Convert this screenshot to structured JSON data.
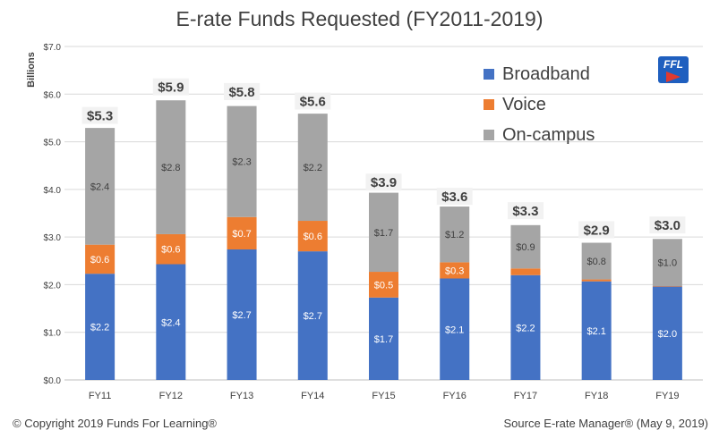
{
  "chart_data": {
    "type": "bar",
    "stacked": true,
    "title": "E-rate Funds Requested (FY2011-2019)",
    "ylabel": "Billions",
    "ylim": [
      0,
      7
    ],
    "yticks": [
      "$0.0",
      "$1.0",
      "$2.0",
      "$3.0",
      "$4.0",
      "$5.0",
      "$6.0",
      "$7.0"
    ],
    "grid": true,
    "legend_position": "top-right",
    "categories": [
      "FY11",
      "FY12",
      "FY13",
      "FY14",
      "FY15",
      "FY16",
      "FY17",
      "FY18",
      "FY19"
    ],
    "series": [
      {
        "name": "Broadband",
        "color": "#4472c4",
        "values": [
          2.23,
          2.43,
          2.74,
          2.7,
          1.73,
          2.13,
          2.2,
          2.07,
          1.96
        ],
        "labels": [
          "$2.2",
          "$2.4",
          "$2.7",
          "$2.7",
          "$1.7",
          "$2.1",
          "$2.2",
          "$2.1",
          "$2.0"
        ]
      },
      {
        "name": "Voice",
        "color": "#ed7d31",
        "values": [
          0.61,
          0.63,
          0.68,
          0.64,
          0.54,
          0.34,
          0.14,
          0.04,
          0.01
        ],
        "labels": [
          "$0.6",
          "$0.6",
          "$0.7",
          "$0.6",
          "$0.5",
          "$0.3",
          "",
          "",
          ""
        ]
      },
      {
        "name": "On-campus",
        "color": "#a5a5a5",
        "values": [
          2.45,
          2.81,
          2.33,
          2.25,
          1.66,
          1.17,
          0.91,
          0.77,
          0.99
        ],
        "labels": [
          "$2.4",
          "$2.8",
          "$2.3",
          "$2.2",
          "$1.7",
          "$1.2",
          "$0.9",
          "$0.8",
          "$1.0"
        ]
      }
    ],
    "totals": [
      "$5.3",
      "$5.9",
      "$5.8",
      "$5.6",
      "$3.9",
      "$3.6",
      "$3.3",
      "$2.9",
      "$3.0"
    ],
    "totals_values": [
      5.3,
      5.9,
      5.8,
      5.6,
      3.9,
      3.6,
      3.3,
      2.9,
      3.0
    ]
  },
  "footer": {
    "copyright": "© Copyright 2019 Funds For Learning®",
    "source": "Source E-rate Manager® (May 9, 2019)"
  },
  "logo": {
    "text": "FFL",
    "icon": "ffl-logo-icon"
  }
}
